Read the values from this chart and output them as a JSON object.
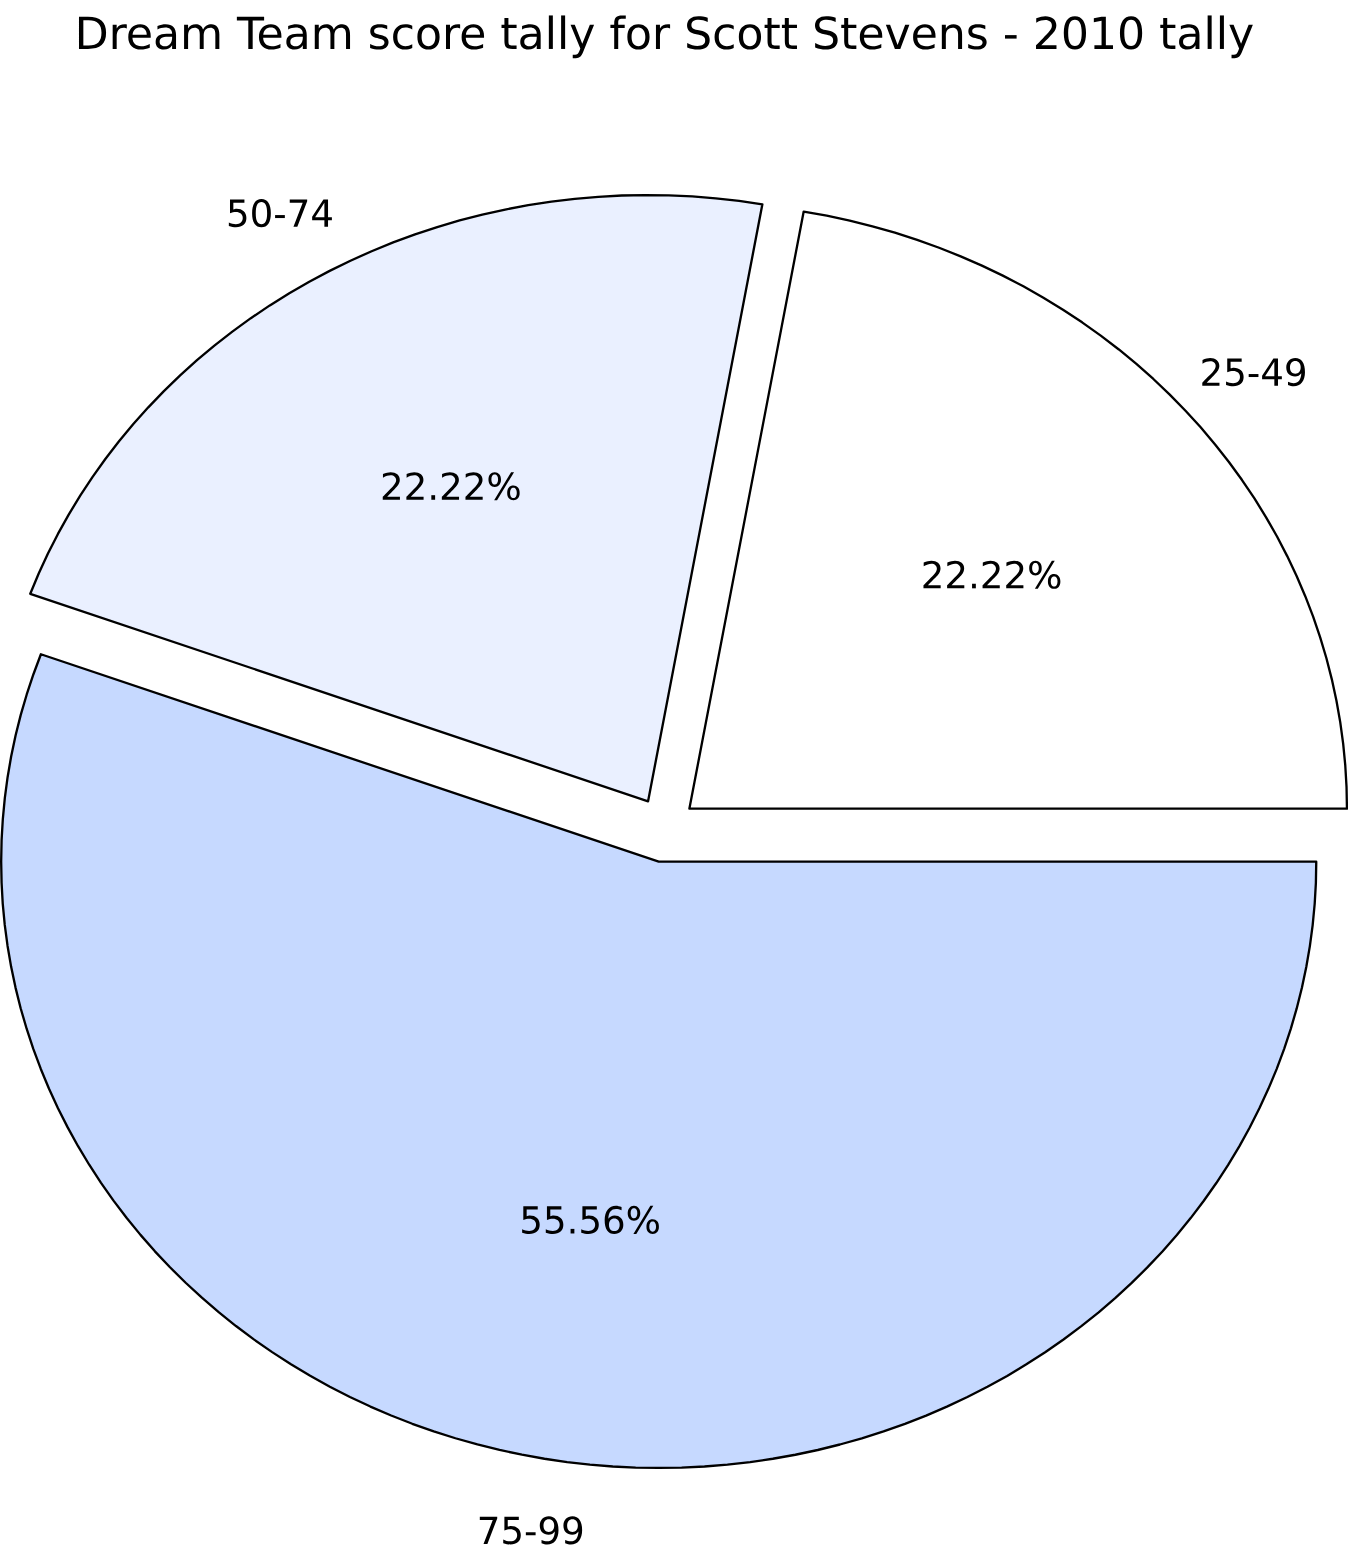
{
  "chart_data": {
    "type": "pie",
    "title": "Dream Team score tally for Scott Stevens - 2010 tally",
    "categories": [
      "25-49",
      "50-74",
      "75-99"
    ],
    "values": [
      22.22,
      22.22,
      55.56
    ],
    "value_labels": [
      "22.22%",
      "22.22%",
      "55.56%"
    ],
    "colors": [
      "#ffffff",
      "#eaf0ff",
      "#c6d9ff"
    ]
  }
}
